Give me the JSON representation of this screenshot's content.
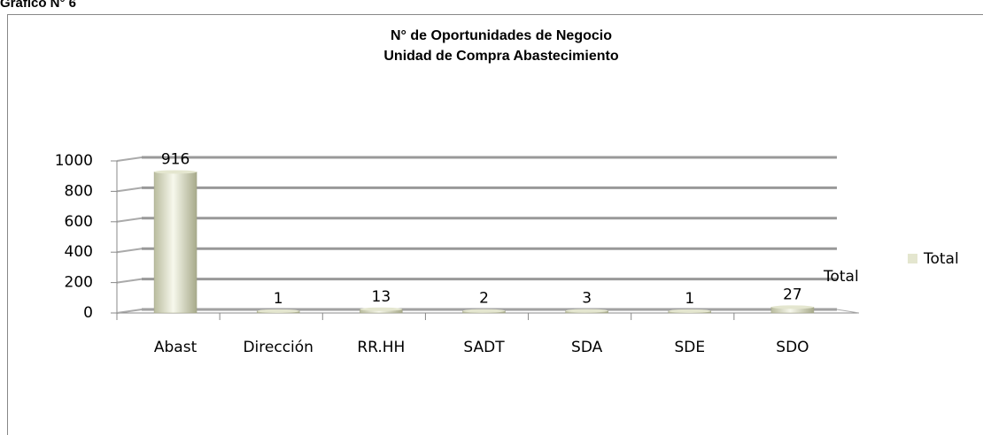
{
  "header": "Gráfico N° 6",
  "chart_data": {
    "type": "bar",
    "title": [
      "N° de Oportunidades  de Negocio",
      "Unidad de Compra Abastecimiento"
    ],
    "categories": [
      "Abast",
      "Dirección",
      "RR.HH",
      "SADT",
      "SDA",
      "SDE",
      "SDO"
    ],
    "series": [
      {
        "name": "Total",
        "color": "#e4e6cf",
        "values": [
          916,
          1,
          13,
          2,
          3,
          1,
          27
        ]
      }
    ],
    "annotation": "Total",
    "ylim": [
      0,
      1000
    ],
    "yticks": [
      0,
      200,
      400,
      600,
      800,
      1000
    ],
    "grid": true,
    "legend": "right"
  }
}
